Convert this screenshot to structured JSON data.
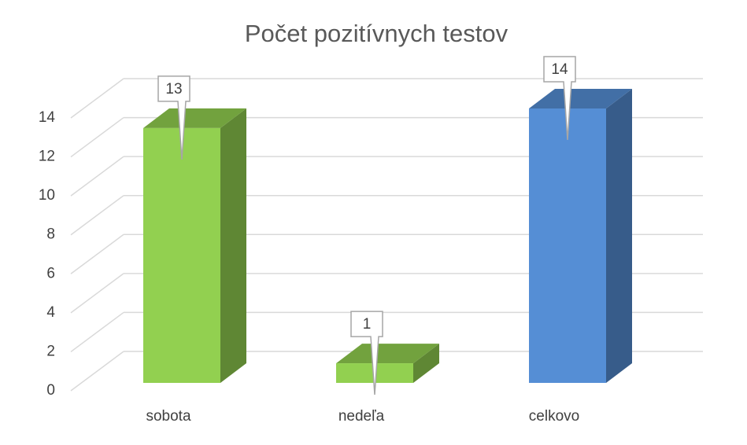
{
  "chart_data": {
    "type": "bar3d",
    "title": "Počet pozitívnych testov",
    "categories": [
      "sobota",
      "nedeľa",
      "celkovo"
    ],
    "values": [
      13,
      1,
      14
    ],
    "colors": [
      "#92d050",
      "#92d050",
      "#558ed5"
    ],
    "ylim": [
      0,
      14
    ],
    "yticks": [
      0,
      2,
      4,
      6,
      8,
      10,
      12,
      14
    ],
    "grid": true
  }
}
